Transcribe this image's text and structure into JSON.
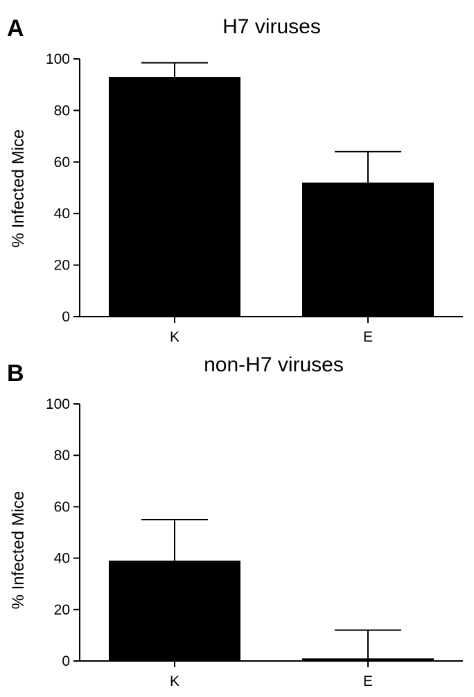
{
  "chart_data": [
    {
      "type": "bar",
      "panel": "A",
      "title": "H7 viruses",
      "xlabel": "",
      "ylabel": "% Infected Mice",
      "ylim": [
        0,
        100
      ],
      "yticks": [
        0,
        20,
        40,
        60,
        80,
        100
      ],
      "categories": [
        "K",
        "E"
      ],
      "values": [
        93,
        52
      ],
      "error_upper": [
        98.5,
        64
      ],
      "grid": false
    },
    {
      "type": "bar",
      "panel": "B",
      "title": "non-H7 viruses",
      "xlabel": "",
      "ylabel": "% Infected Mice",
      "ylim": [
        0,
        100
      ],
      "yticks": [
        0,
        20,
        40,
        60,
        80,
        100
      ],
      "categories": [
        "K",
        "E"
      ],
      "values": [
        39,
        1
      ],
      "error_upper": [
        55,
        12
      ],
      "grid": false
    }
  ],
  "colors": {
    "bar": "#000000",
    "axis": "#000000"
  }
}
